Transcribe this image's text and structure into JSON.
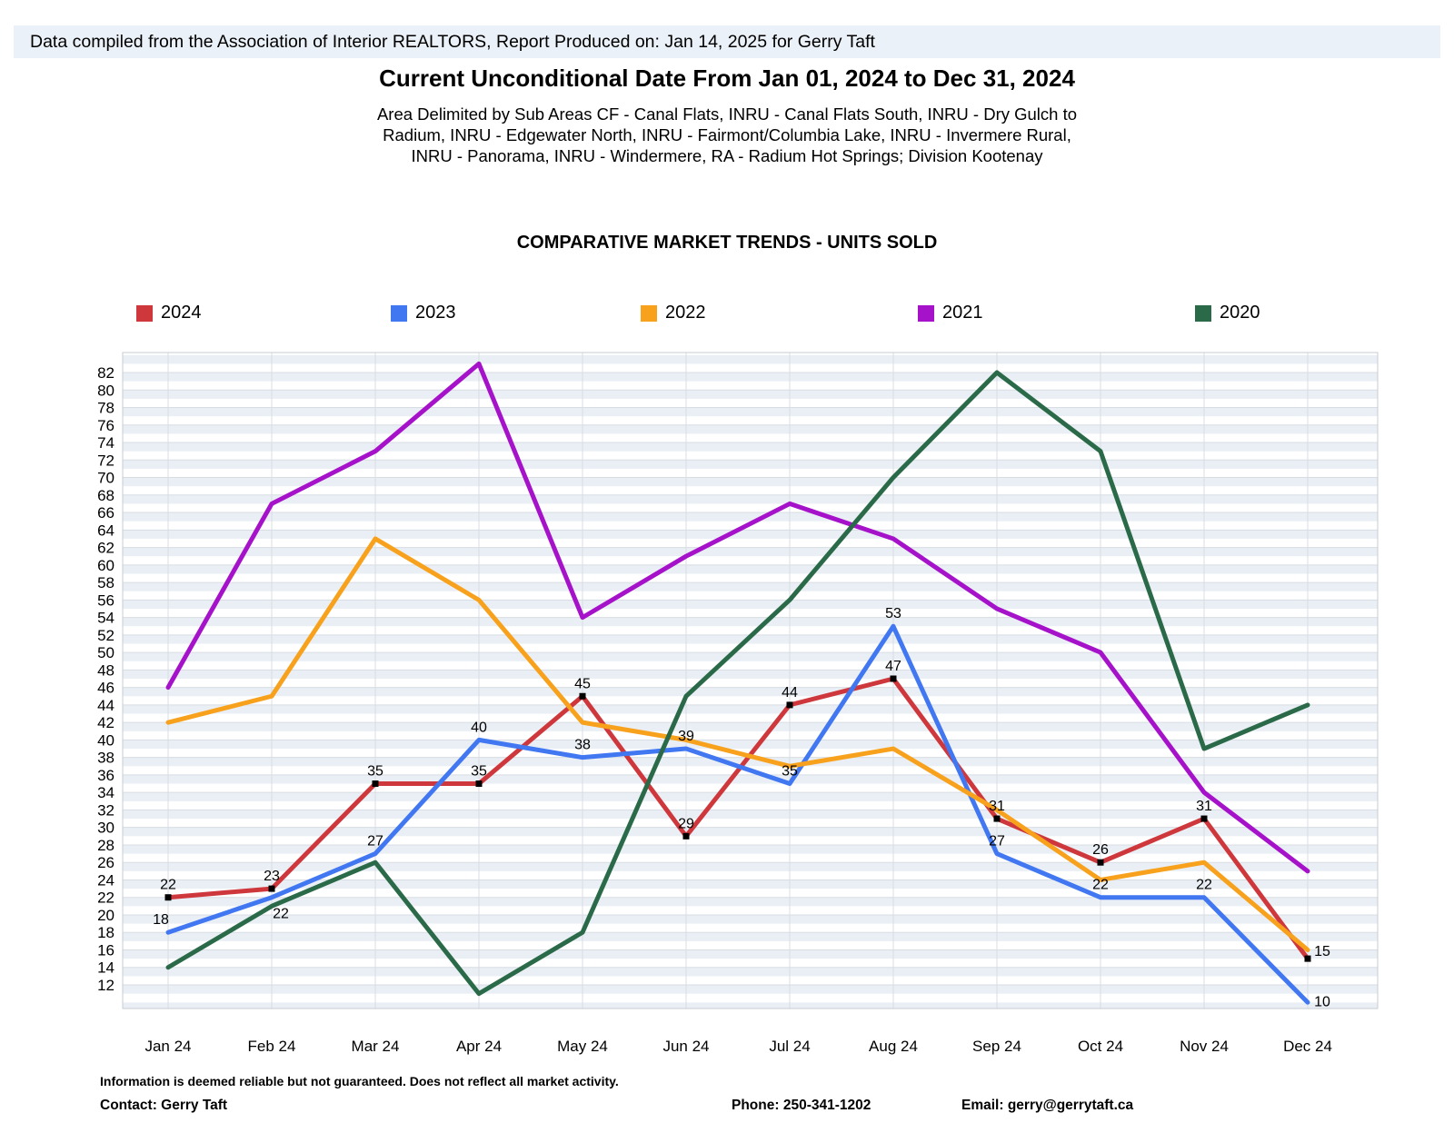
{
  "report": {
    "info_bar": "Data compiled from the Association of Interior REALTORS, Report Produced on: Jan 14, 2025 for Gerry Taft",
    "title": "Current Unconditional Date From Jan 01, 2024 to Dec 31, 2024",
    "subtitle_lines": [
      "Area Delimited by Sub Areas CF - Canal Flats, INRU - Canal Flats South, INRU - Dry Gulch to",
      "Radium, INRU - Edgewater North, INRU - Fairmont/Columbia Lake, INRU - Invermere Rural,",
      "INRU - Panorama, INRU - Windermere, RA - Radium Hot Springs; Division Kootenay"
    ]
  },
  "chart_data": {
    "type": "line",
    "title": "COMPARATIVE MARKET TRENDS - UNITS SOLD",
    "categories": [
      "Jan 24",
      "Feb 24",
      "Mar 24",
      "Apr 24",
      "May 24",
      "Jun 24",
      "Jul 24",
      "Aug 24",
      "Sep 24",
      "Oct 24",
      "Nov 24",
      "Dec 24"
    ],
    "xlabel": "",
    "ylabel": "",
    "ylim": [
      9,
      84
    ],
    "yticks": [
      12,
      14,
      16,
      18,
      20,
      22,
      24,
      26,
      28,
      30,
      32,
      34,
      36,
      38,
      40,
      42,
      44,
      46,
      48,
      50,
      52,
      54,
      56,
      58,
      60,
      62,
      64,
      66,
      68,
      70,
      72,
      74,
      76,
      78,
      80,
      82
    ],
    "grid": true,
    "legend_position": "top",
    "series": [
      {
        "name": "2024",
        "color": "#ce383c",
        "values": [
          22,
          23,
          35,
          35,
          45,
          29,
          44,
          47,
          31,
          26,
          31,
          15
        ],
        "point_labels": true,
        "markers": true
      },
      {
        "name": "2023",
        "color": "#4277f2",
        "values": [
          18,
          22,
          27,
          40,
          38,
          39,
          35,
          53,
          27,
          22,
          22,
          10
        ],
        "point_labels": true,
        "markers": false
      },
      {
        "name": "2022",
        "color": "#f7a11c",
        "values": [
          42,
          45,
          63,
          56,
          42,
          40,
          37,
          39,
          32,
          24,
          26,
          16
        ],
        "point_labels": false,
        "markers": false
      },
      {
        "name": "2021",
        "color": "#a512c9",
        "values": [
          46,
          67,
          73,
          83,
          54,
          61,
          67,
          63,
          55,
          50,
          34,
          25
        ],
        "point_labels": false,
        "markers": false
      },
      {
        "name": "2020",
        "color": "#2b6a49",
        "values": [
          14,
          21,
          26,
          11,
          18,
          45,
          56,
          70,
          82,
          73,
          39,
          44
        ],
        "point_labels": false,
        "markers": false
      }
    ]
  },
  "footer": {
    "disclaimer": "Information is deemed reliable but not guaranteed. Does not reflect all market activity.",
    "contact": "Contact: Gerry Taft",
    "phone": "Phone: 250-341-1202",
    "email": "Email: gerry@gerrytaft.ca"
  }
}
